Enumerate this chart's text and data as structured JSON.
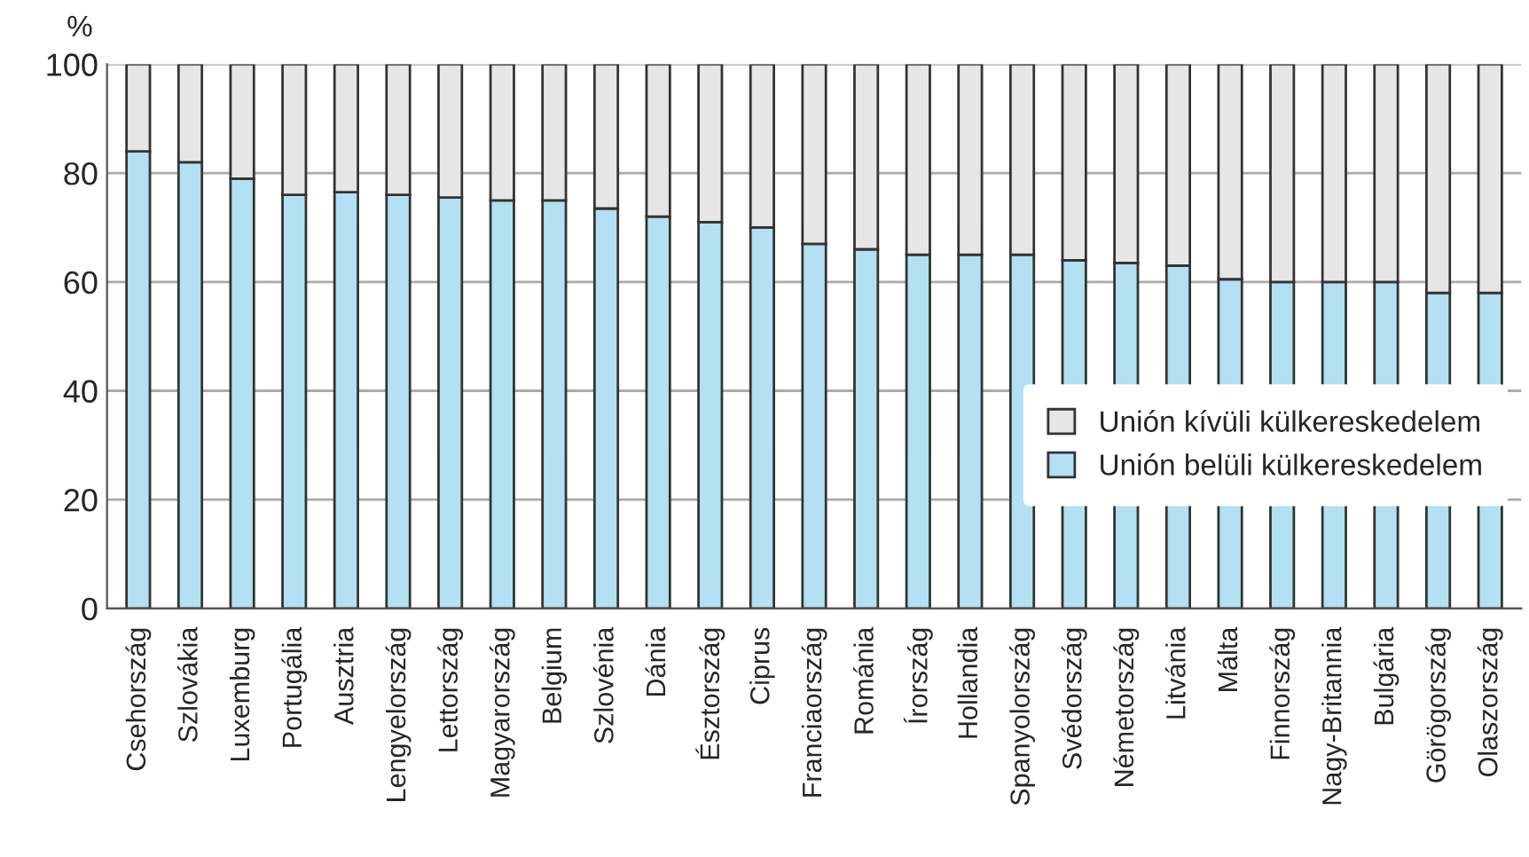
{
  "chart_data": {
    "type": "bar",
    "stacked": true,
    "ylabel": "%",
    "categories": [
      "Csehország",
      "Szlovákia",
      "Luxemburg",
      "Portugália",
      "Ausztria",
      "Lengyelország",
      "Lettország",
      "Magyarország",
      "Belgium",
      "Szlovénia",
      "Dánia",
      "Észtország",
      "Ciprus",
      "Franciaország",
      "Románia",
      "Írország",
      "Hollandia",
      "Spanyolország",
      "Svédország",
      "Németország",
      "Litvánia",
      "Málta",
      "Finnország",
      "Nagy-Britannia",
      "Bulgária",
      "Görögország",
      "Olaszország"
    ],
    "series": [
      {
        "name": "Unión belüli külkereskedelem",
        "color": "#b3e0f2",
        "values": [
          84,
          82,
          79,
          76,
          76.5,
          76,
          75.5,
          75,
          75,
          73.5,
          72,
          71,
          70,
          67,
          66,
          65,
          65,
          65,
          64,
          63.5,
          63,
          60.5,
          60,
          60,
          60,
          58,
          58
        ]
      },
      {
        "name": "Unión kívüli külkereskedelem",
        "color": "#e6e6e6",
        "values": [
          16,
          18,
          21,
          24,
          23.5,
          24,
          24.5,
          25,
          25,
          26.5,
          28,
          29,
          30,
          33,
          34,
          35,
          35,
          35,
          36,
          36.5,
          37,
          39.5,
          40,
          40,
          40,
          42,
          42
        ]
      }
    ],
    "ylim": [
      0,
      100
    ],
    "yticks": [
      0,
      20,
      40,
      60,
      80,
      100
    ],
    "grid": "y",
    "legend": "right"
  }
}
